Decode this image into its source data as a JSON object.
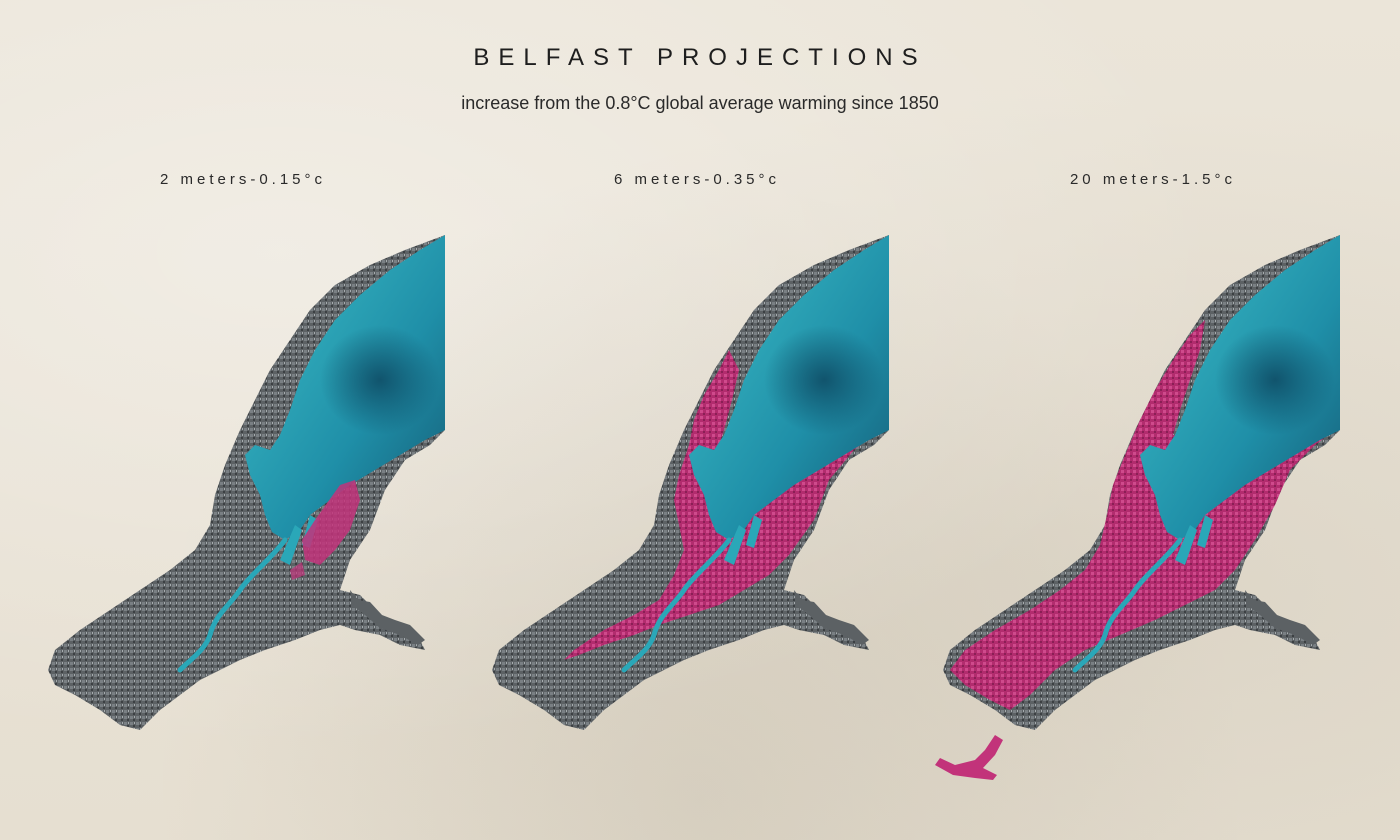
{
  "title": "BELFAST PROJECTIONS",
  "subtitle": "increase from the 0.8°C global average warming since 1850",
  "panels": [
    {
      "label": "2 meters-0.15°c",
      "flood_level": 0.15
    },
    {
      "label": "6 meters-0.35°c",
      "flood_level": 0.45
    },
    {
      "label": "20 meters-1.5°c",
      "flood_level": 1.0
    }
  ],
  "colors": {
    "background": "#e9e3d6",
    "land": "#5a5f62",
    "water": "#2aa7b8",
    "water_deep": "#17607a",
    "flood": "#c2337a"
  }
}
